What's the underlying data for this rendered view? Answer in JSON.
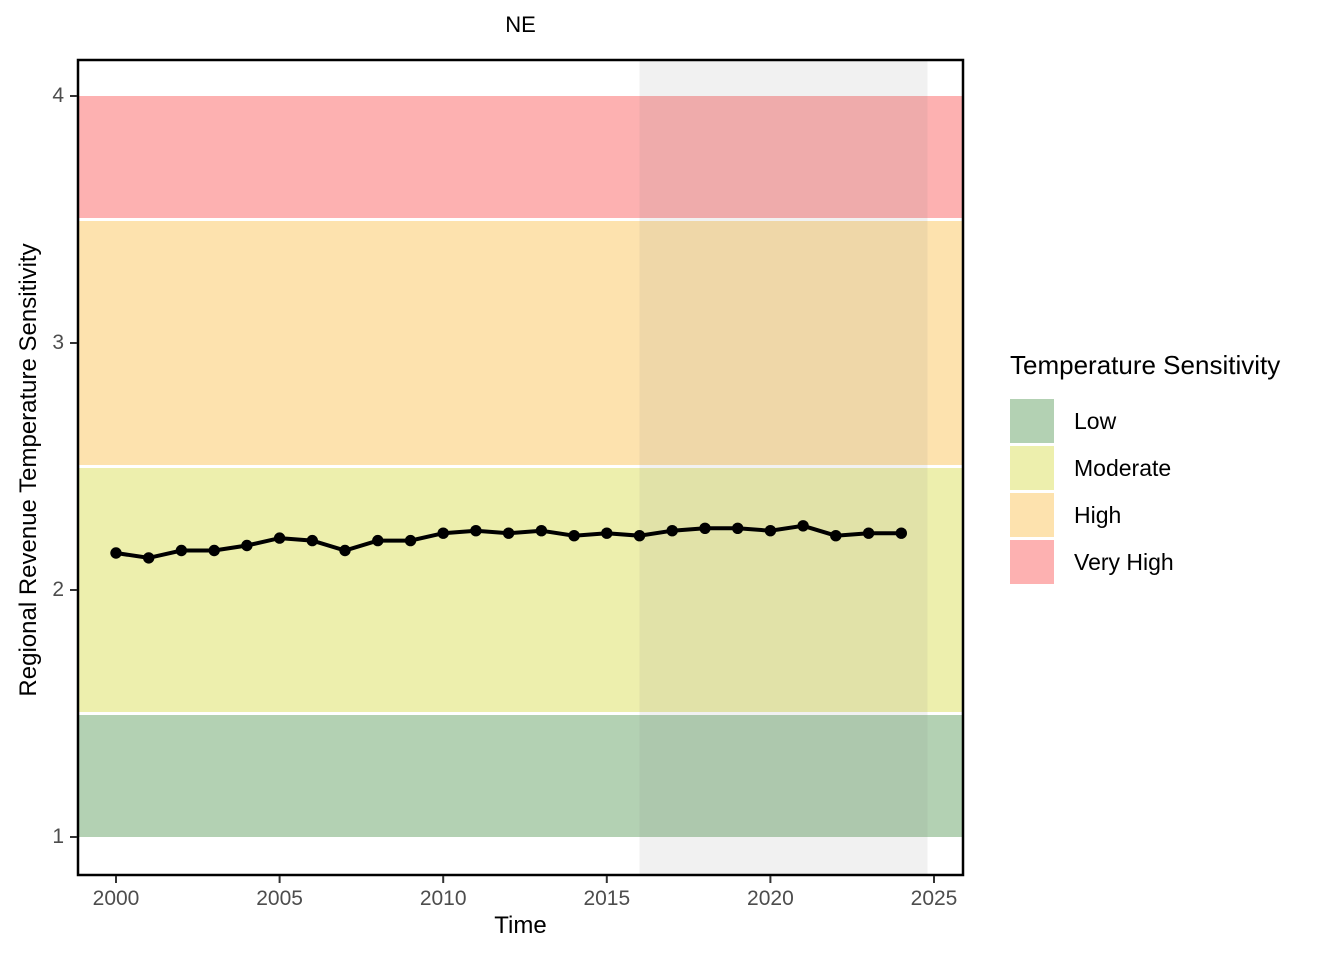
{
  "chart_data": {
    "type": "line",
    "title": "NE",
    "xlabel": "Time",
    "ylabel": "Regional Revenue Temperature Sensitivity",
    "x": [
      2000,
      2001,
      2002,
      2003,
      2004,
      2005,
      2006,
      2007,
      2008,
      2009,
      2010,
      2011,
      2012,
      2013,
      2014,
      2015,
      2016,
      2017,
      2018,
      2019,
      2020,
      2021,
      2022,
      2023,
      2024
    ],
    "series": [
      {
        "name": "Regional Revenue Temperature Sensitivity",
        "color": "#000000",
        "values": [
          2.15,
          2.13,
          2.16,
          2.16,
          2.18,
          2.21,
          2.2,
          2.16,
          2.2,
          2.2,
          2.23,
          2.24,
          2.23,
          2.24,
          2.22,
          2.23,
          2.22,
          2.24,
          2.25,
          2.25,
          2.24,
          2.26,
          2.22,
          2.23,
          2.23
        ]
      }
    ],
    "x_ticks": [
      2000,
      2005,
      2010,
      2015,
      2020,
      2025
    ],
    "y_ticks": [
      1,
      2,
      3,
      4
    ],
    "xlim": [
      1998.84,
      2025.9
    ],
    "ylim": [
      0.85,
      4.15
    ],
    "grid": false,
    "bands": [
      {
        "label": "Low",
        "from": 1.0,
        "to": 1.5,
        "color": "#b3d1b3"
      },
      {
        "label": "Moderate",
        "from": 1.5,
        "to": 2.5,
        "color": "#edefad"
      },
      {
        "label": "High",
        "from": 2.5,
        "to": 3.5,
        "color": "#fde2ae"
      },
      {
        "label": "Very High",
        "from": 3.5,
        "to": 4.0,
        "color": "#fdb1b1"
      }
    ],
    "forecast_region": {
      "start": 2016,
      "end": 2024.8,
      "overlay_color": "#7d7d7d",
      "overlay_opacity": 0.11
    },
    "legend": {
      "title": "Temperature Sensitivity",
      "position": "right",
      "entries": [
        {
          "label": "Low",
          "color": "#b3d1b3"
        },
        {
          "label": "Moderate",
          "color": "#edefad"
        },
        {
          "label": "High",
          "color": "#fde2ae"
        },
        {
          "label": "Very High",
          "color": "#fdb1b1"
        }
      ]
    }
  }
}
